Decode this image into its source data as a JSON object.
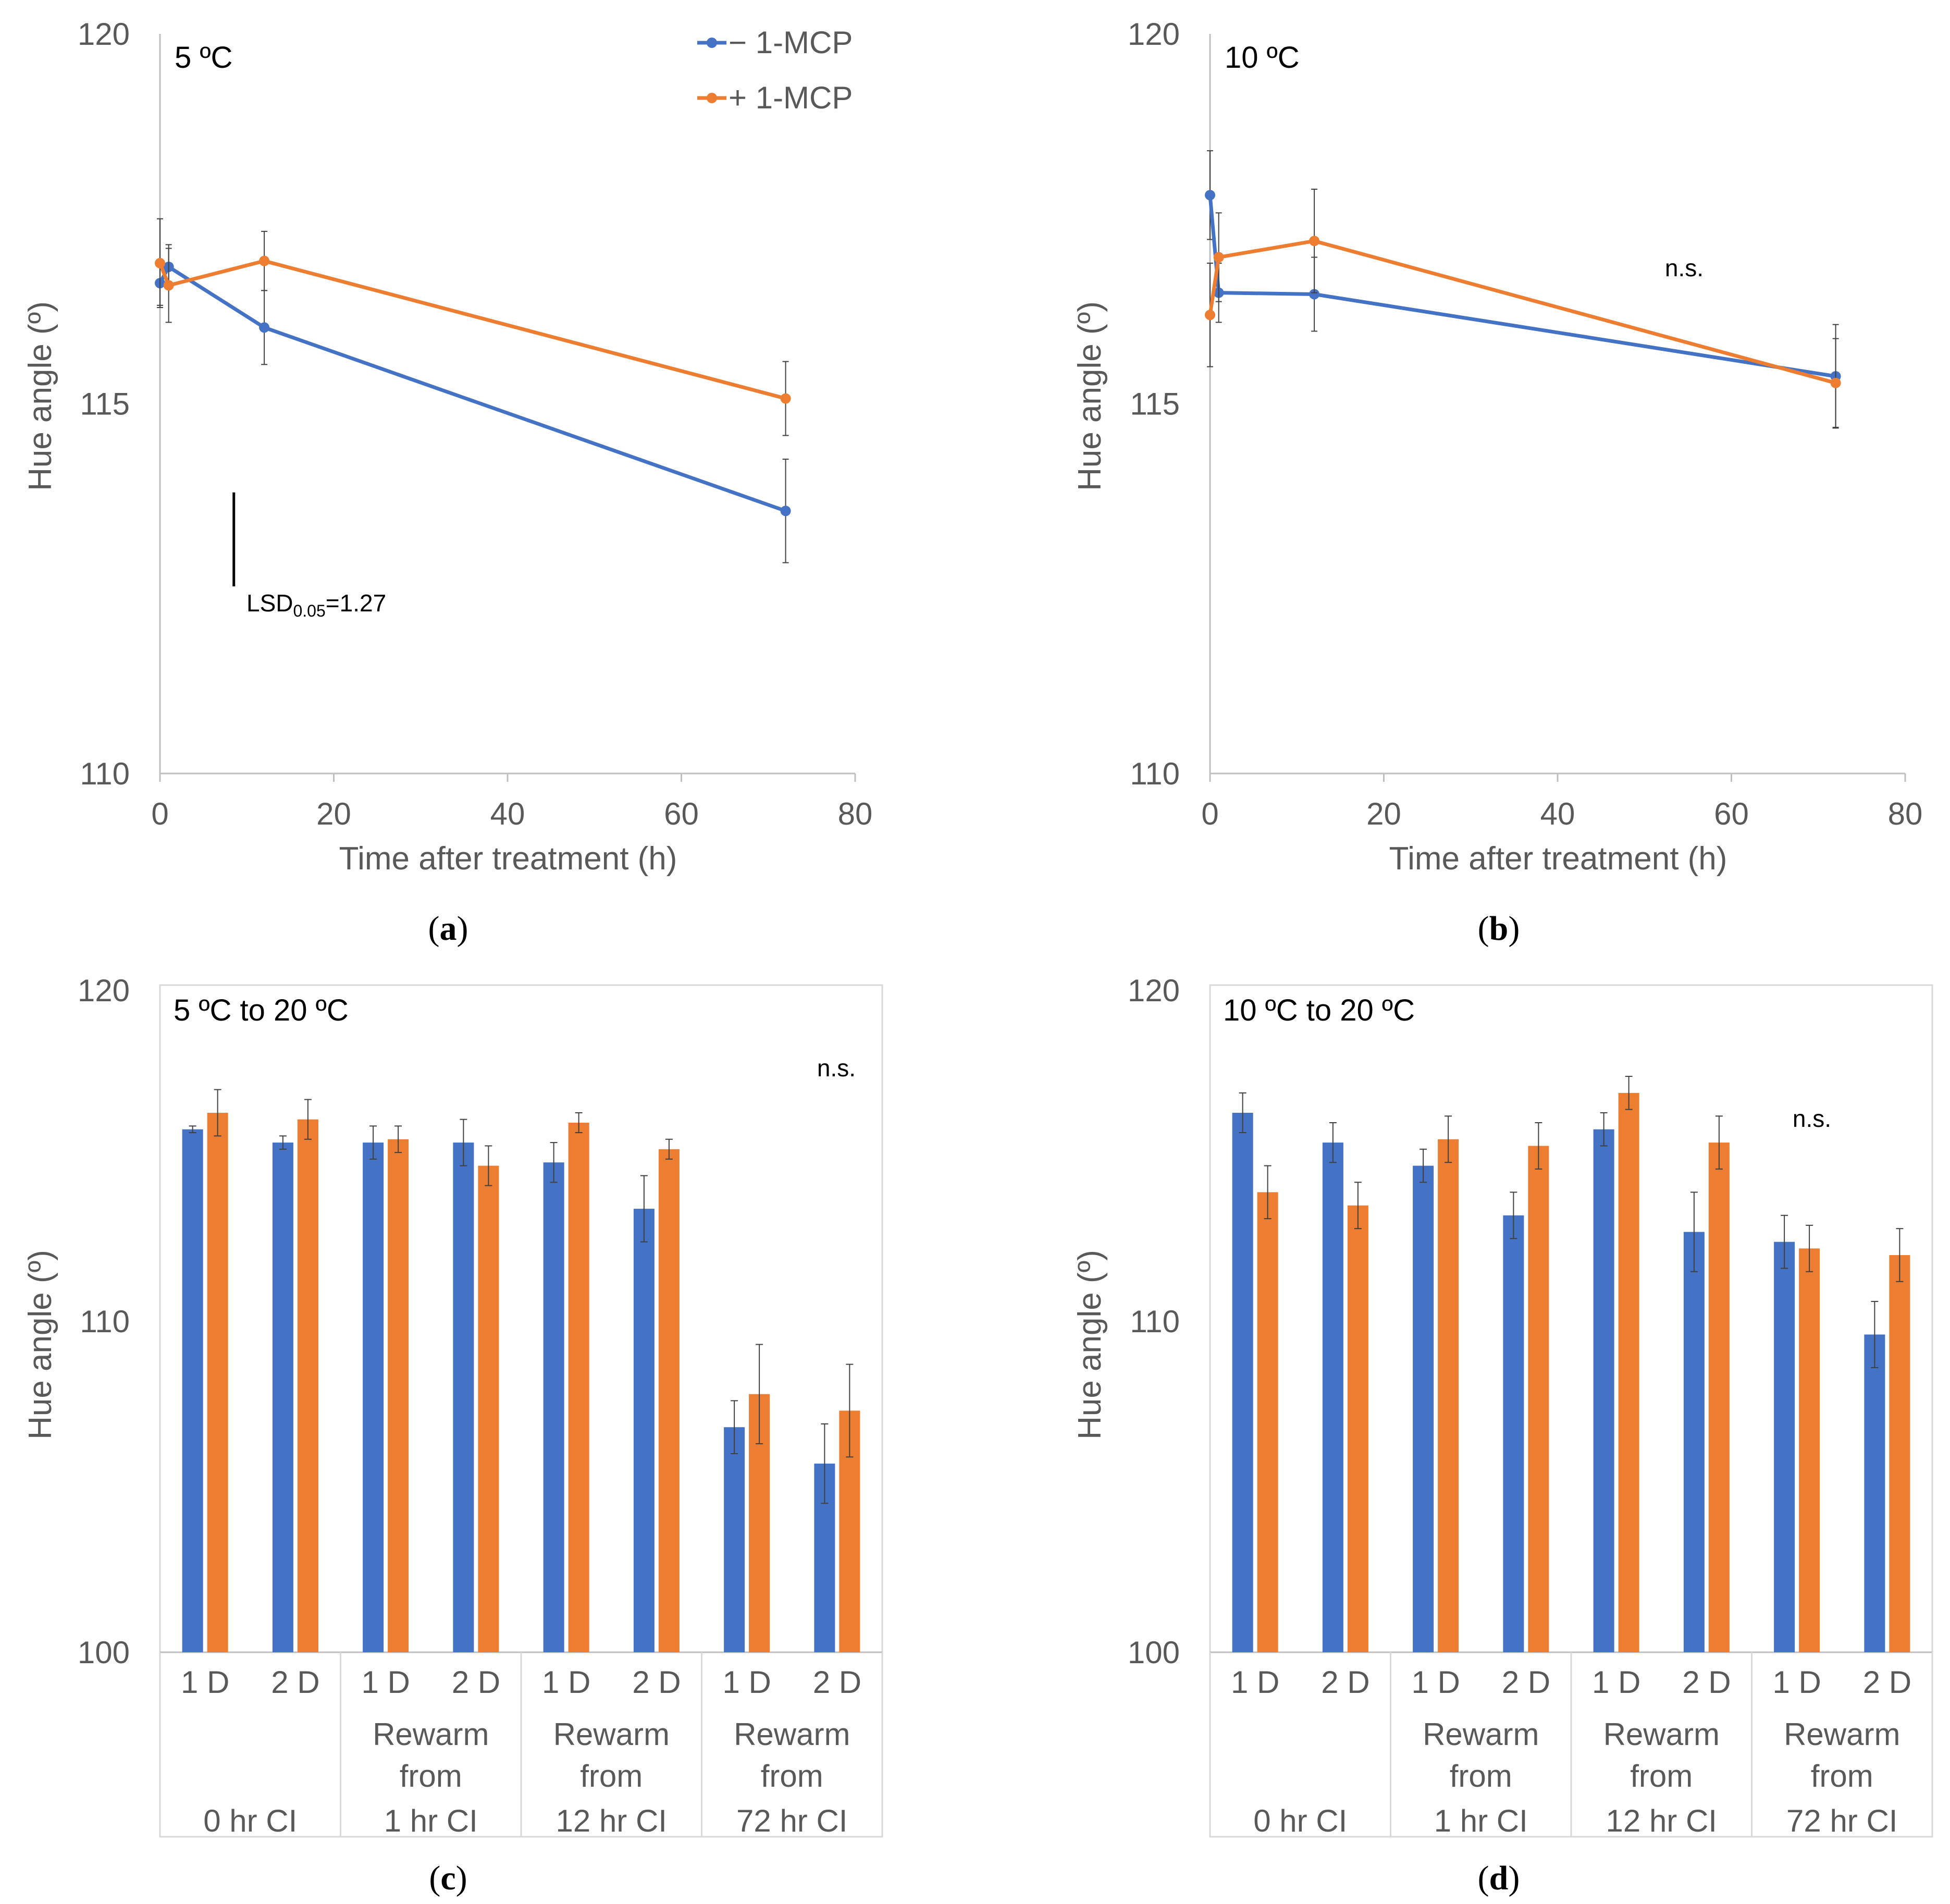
{
  "colors": {
    "minus": "#4472C4",
    "plus": "#ED7D31",
    "axis": "#BFBFBF",
    "text": "#595959",
    "err": "#404040"
  },
  "legend": {
    "minus_label": "− 1-MCP",
    "plus_label": "+ 1-MCP"
  },
  "panels": {
    "a": {
      "label_letter": "a",
      "title": "5 ºC",
      "xlabel": "Time after treatment (h)",
      "ylabel": "Hue angle (º)",
      "lsd_main": "LSD",
      "lsd_sub": "0.05",
      "lsd_value": "=1.27"
    },
    "b": {
      "label_letter": "b",
      "title": "10 ºC",
      "xlabel": "Time after treatment (h)",
      "ylabel": "Hue angle (º)",
      "note": "n.s."
    },
    "c": {
      "label_letter": "c",
      "title": "5 ºC to 20 ºC",
      "ylabel": "Hue angle (º)",
      "note": "n.s."
    },
    "d": {
      "label_letter": "d",
      "title": "10 ºC to 20 ºC",
      "ylabel": "Hue angle (º)",
      "note": "n.s."
    }
  },
  "chart_data": [
    {
      "id": "a",
      "type": "line",
      "title": "5 ºC",
      "xlabel": "Time after treatment (h)",
      "ylabel": "Hue angle (º)",
      "xlim": [
        0,
        80
      ],
      "ylim": [
        110,
        120
      ],
      "xticks": [
        0,
        20,
        40,
        60,
        80
      ],
      "yticks": [
        110,
        115,
        120
      ],
      "lsd": {
        "label": "LSD0.05=1.27",
        "value": 1.27,
        "x": 8.5,
        "y_top": 113.8
      },
      "series": [
        {
          "name": "− 1-MCP",
          "color": "#4472C4",
          "x": [
            0,
            1,
            12,
            72
          ],
          "y": [
            116.63,
            116.85,
            116.03,
            113.55
          ],
          "err": [
            0.3,
            0.3,
            0.5,
            0.7
          ]
        },
        {
          "name": "+ 1-MCP",
          "color": "#ED7D31",
          "x": [
            0,
            1,
            12,
            72
          ],
          "y": [
            116.9,
            116.6,
            116.93,
            115.07
          ],
          "err": [
            0.6,
            0.5,
            0.4,
            0.5
          ]
        }
      ]
    },
    {
      "id": "b",
      "type": "line",
      "title": "10 ºC",
      "xlabel": "Time after treatment (h)",
      "ylabel": "Hue angle (º)",
      "xlim": [
        0,
        80
      ],
      "ylim": [
        110,
        120
      ],
      "xticks": [
        0,
        20,
        40,
        60,
        80
      ],
      "yticks": [
        110,
        115,
        120
      ],
      "annotation": "n.s.",
      "series": [
        {
          "name": "− 1-MCP",
          "color": "#4472C4",
          "x": [
            0,
            1,
            12,
            72
          ],
          "y": [
            117.82,
            116.5,
            116.48,
            115.37
          ],
          "err": [
            0.6,
            0.4,
            0.5,
            0.7
          ]
        },
        {
          "name": "+ 1-MCP",
          "color": "#ED7D31",
          "x": [
            0,
            1,
            12,
            72
          ],
          "y": [
            116.2,
            116.98,
            117.2,
            115.28
          ],
          "err": [
            0.7,
            0.6,
            0.7,
            0.6
          ]
        }
      ]
    },
    {
      "id": "c",
      "type": "bar",
      "title": "5 ºC to 20 ºC",
      "ylabel": "Hue angle (º)",
      "ylim": [
        100,
        120
      ],
      "yticks": [
        100,
        110,
        120
      ],
      "annotation": "n.s.",
      "categories": [
        "1 D",
        "2 D",
        "1 D",
        "2 D",
        "1 D",
        "2 D",
        "1 D",
        "2 D"
      ],
      "groups": [
        {
          "lines": [
            "",
            "",
            "0 hr CI"
          ]
        },
        {
          "lines": [
            "Rewarm",
            "from",
            "1 hr CI"
          ]
        },
        {
          "lines": [
            "Rewarm",
            "from",
            "12 hr CI"
          ]
        },
        {
          "lines": [
            "Rewarm",
            "from",
            "72 hr CI"
          ]
        }
      ],
      "series": [
        {
          "name": "− 1-MCP",
          "color": "#4472C4",
          "values": [
            115.8,
            115.4,
            115.4,
            115.4,
            114.8,
            113.4,
            106.8,
            105.7
          ],
          "err": [
            0.1,
            0.2,
            0.5,
            0.7,
            0.6,
            1.0,
            0.8,
            1.2
          ]
        },
        {
          "name": "+ 1-MCP",
          "color": "#ED7D31",
          "values": [
            116.3,
            116.1,
            115.5,
            114.7,
            116.0,
            115.2,
            107.8,
            107.3
          ],
          "err": [
            0.7,
            0.6,
            0.4,
            0.6,
            0.3,
            0.3,
            1.5,
            1.4
          ]
        }
      ]
    },
    {
      "id": "d",
      "type": "bar",
      "title": "10 ºC to 20 ºC",
      "ylabel": "Hue angle (º)",
      "ylim": [
        100,
        120
      ],
      "yticks": [
        100,
        110,
        120
      ],
      "annotation": "n.s.",
      "categories": [
        "1 D",
        "2 D",
        "1 D",
        "2 D",
        "1 D",
        "2 D",
        "1 D",
        "2 D"
      ],
      "groups": [
        {
          "lines": [
            "",
            "",
            "0 hr CI"
          ]
        },
        {
          "lines": [
            "Rewarm",
            "from",
            "1 hr CI"
          ]
        },
        {
          "lines": [
            "Rewarm",
            "from",
            "12 hr CI"
          ]
        },
        {
          "lines": [
            "Rewarm",
            "from",
            "72 hr CI"
          ]
        }
      ],
      "series": [
        {
          "name": "− 1-MCP",
          "color": "#4472C4",
          "values": [
            116.3,
            115.4,
            114.7,
            113.2,
            115.8,
            112.7,
            112.4,
            109.6
          ],
          "err": [
            0.6,
            0.6,
            0.5,
            0.7,
            0.5,
            1.2,
            0.8,
            1.0
          ]
        },
        {
          "name": "+ 1-MCP",
          "color": "#ED7D31",
          "values": [
            113.9,
            113.5,
            115.5,
            115.3,
            116.9,
            115.4,
            112.2,
            112.0
          ],
          "err": [
            0.8,
            0.7,
            0.7,
            0.7,
            0.5,
            0.8,
            0.7,
            0.8
          ]
        }
      ]
    }
  ]
}
